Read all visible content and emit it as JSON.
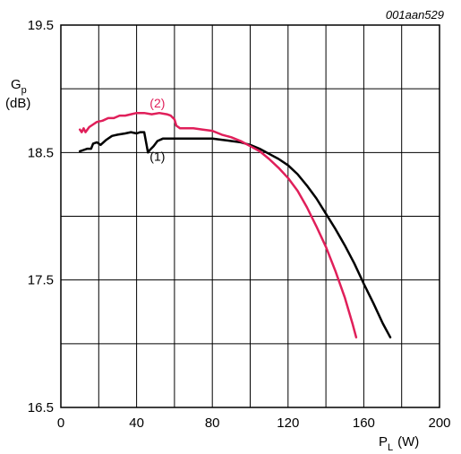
{
  "chart_data": {
    "type": "line",
    "reference_code": "001aan529",
    "ylabel_main": "G",
    "ylabel_sub": "p",
    "ylabel_unit": "(dB)",
    "xlabel_main": "P",
    "xlabel_sub": "L",
    "xlabel_unit": "(W)",
    "xlim": [
      0,
      200
    ],
    "ylim": [
      16.5,
      19.5
    ],
    "x_ticks": [
      0,
      40,
      80,
      120,
      160,
      200
    ],
    "y_ticks": [
      16.5,
      17.5,
      18.5,
      19.5
    ],
    "x_grid_step": 20,
    "y_grid_step": 0.5,
    "grid": true,
    "series": [
      {
        "name": "(1)",
        "color": "#000000",
        "points": [
          [
            10,
            18.51
          ],
          [
            12,
            18.52
          ],
          [
            14,
            18.53
          ],
          [
            16,
            18.53
          ],
          [
            17,
            18.57
          ],
          [
            19,
            18.58
          ],
          [
            21,
            18.56
          ],
          [
            24,
            18.6
          ],
          [
            27,
            18.63
          ],
          [
            30,
            18.64
          ],
          [
            34,
            18.65
          ],
          [
            37,
            18.66
          ],
          [
            40,
            18.65
          ],
          [
            42,
            18.66
          ],
          [
            44,
            18.66
          ],
          [
            45,
            18.58
          ],
          [
            46,
            18.5
          ],
          [
            47,
            18.52
          ],
          [
            49,
            18.55
          ],
          [
            51,
            18.59
          ],
          [
            54,
            18.61
          ],
          [
            60,
            18.61
          ],
          [
            70,
            18.61
          ],
          [
            80,
            18.61
          ],
          [
            85,
            18.6
          ],
          [
            90,
            18.59
          ],
          [
            95,
            18.58
          ],
          [
            100,
            18.56
          ],
          [
            105,
            18.53
          ],
          [
            110,
            18.49
          ],
          [
            115,
            18.45
          ],
          [
            120,
            18.4
          ],
          [
            125,
            18.33
          ],
          [
            130,
            18.24
          ],
          [
            135,
            18.14
          ],
          [
            140,
            18.02
          ],
          [
            145,
            17.9
          ],
          [
            150,
            17.77
          ],
          [
            155,
            17.63
          ],
          [
            160,
            17.47
          ],
          [
            165,
            17.32
          ],
          [
            170,
            17.16
          ],
          [
            174,
            17.05
          ]
        ]
      },
      {
        "name": "(2)",
        "color": "#e01f5a",
        "points": [
          [
            10,
            18.68
          ],
          [
            11,
            18.66
          ],
          [
            12,
            18.69
          ],
          [
            13,
            18.66
          ],
          [
            15,
            18.7
          ],
          [
            17,
            18.72
          ],
          [
            19,
            18.74
          ],
          [
            22,
            18.75
          ],
          [
            25,
            18.77
          ],
          [
            28,
            18.77
          ],
          [
            31,
            18.79
          ],
          [
            34,
            18.79
          ],
          [
            37,
            18.8
          ],
          [
            40,
            18.81
          ],
          [
            44,
            18.81
          ],
          [
            48,
            18.8
          ],
          [
            52,
            18.81
          ],
          [
            56,
            18.8
          ],
          [
            58,
            18.79
          ],
          [
            60,
            18.76
          ],
          [
            61,
            18.71
          ],
          [
            63,
            18.69
          ],
          [
            66,
            18.69
          ],
          [
            70,
            18.69
          ],
          [
            75,
            18.68
          ],
          [
            80,
            18.67
          ],
          [
            85,
            18.64
          ],
          [
            90,
            18.62
          ],
          [
            95,
            18.59
          ],
          [
            100,
            18.55
          ],
          [
            105,
            18.51
          ],
          [
            110,
            18.45
          ],
          [
            115,
            18.38
          ],
          [
            120,
            18.3
          ],
          [
            125,
            18.2
          ],
          [
            130,
            18.07
          ],
          [
            135,
            17.92
          ],
          [
            140,
            17.76
          ],
          [
            145,
            17.57
          ],
          [
            150,
            17.36
          ],
          [
            154,
            17.16
          ],
          [
            156,
            17.05
          ]
        ]
      }
    ],
    "annotations": [
      {
        "text": "(1)",
        "x": 51,
        "y": 18.47,
        "color": "#000000"
      },
      {
        "text": "(2)",
        "x": 51,
        "y": 18.89,
        "color": "#e01f5a"
      }
    ]
  }
}
